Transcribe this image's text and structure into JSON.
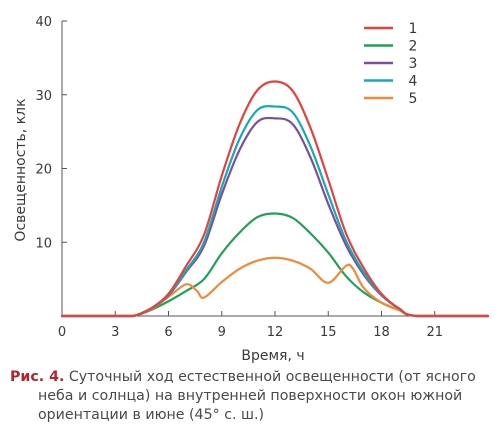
{
  "chart_data": {
    "type": "line",
    "xlabel": "Время, ч",
    "ylabel": "Освещенность, клк",
    "xlim": [
      0,
      24
    ],
    "ylim": [
      0,
      40
    ],
    "xticks": [
      "0",
      "3",
      "6",
      "9",
      "12",
      "15",
      "18",
      "21"
    ],
    "xtick_values": [
      0,
      3,
      6,
      9,
      12,
      15,
      18,
      21
    ],
    "yticks": [
      "10",
      "20",
      "30",
      "40"
    ],
    "ytick_values": [
      10,
      20,
      30,
      40
    ],
    "grid": false,
    "legend_position": "top-right",
    "series": [
      {
        "name": "1",
        "color": "#e8403c",
        "x": [
          0,
          3,
          4,
          5,
          6,
          7,
          8,
          9,
          10,
          11,
          12,
          13,
          14,
          15,
          16,
          17,
          18,
          19,
          20,
          24
        ],
        "y": [
          0,
          0,
          0,
          1,
          3,
          6.8,
          11,
          19,
          26,
          30.6,
          31.8,
          30.5,
          25.5,
          18.5,
          11.2,
          6.5,
          3,
          1,
          0,
          0
        ]
      },
      {
        "name": "2",
        "color": "#21a05a",
        "x": [
          0,
          3,
          4,
          5,
          6,
          7,
          8,
          9,
          10,
          11,
          12,
          13,
          14,
          15,
          16,
          17,
          18,
          19,
          20,
          24
        ],
        "y": [
          0,
          0,
          0,
          0.8,
          2,
          3.4,
          5,
          8.5,
          11.3,
          13.4,
          13.9,
          13.3,
          11.2,
          8.6,
          5.4,
          3.2,
          1.8,
          0.8,
          0,
          0
        ]
      },
      {
        "name": "3",
        "color": "#7a4ea0",
        "x": [
          0,
          3,
          4,
          5,
          6,
          7,
          8,
          9,
          10,
          11,
          12,
          13,
          14,
          15,
          16,
          17,
          18,
          19,
          20,
          24
        ],
        "y": [
          0,
          0,
          0,
          1,
          2.8,
          6,
          9.5,
          16.5,
          22.5,
          26.3,
          26.8,
          26,
          21.5,
          15.2,
          9.6,
          5.6,
          2.8,
          1,
          0,
          0
        ]
      },
      {
        "name": "4",
        "color": "#16aab4",
        "x": [
          0,
          3,
          4,
          5,
          6,
          7,
          8,
          9,
          10,
          11,
          12,
          13,
          14,
          15,
          16,
          17,
          18,
          19,
          20,
          24
        ],
        "y": [
          0,
          0,
          0,
          1,
          2.9,
          6.2,
          10,
          17.5,
          24,
          27.9,
          28.4,
          27.6,
          23,
          16.5,
          10.2,
          5.9,
          2.9,
          1,
          0,
          0
        ]
      },
      {
        "name": "5",
        "color": "#f08a3a",
        "x": [
          0,
          3,
          4,
          5,
          6,
          7,
          7.6,
          8,
          9,
          10,
          11,
          12,
          13,
          14,
          15,
          16,
          16.4,
          17,
          18,
          19,
          20,
          24
        ],
        "y": [
          0,
          0,
          0,
          0.9,
          2.6,
          4.3,
          3.4,
          2.5,
          4.6,
          6.4,
          7.5,
          7.9,
          7.5,
          6.4,
          4.5,
          6.8,
          6.4,
          3.8,
          1.8,
          0.8,
          0,
          0
        ]
      }
    ]
  },
  "caption": {
    "label": "Рис. 4.",
    "text": " Суточный ход естественной освещенности (от ясного неба и солнца) на внутренней поверхности окон южной ориентации в июне (45° с. ш.)"
  }
}
